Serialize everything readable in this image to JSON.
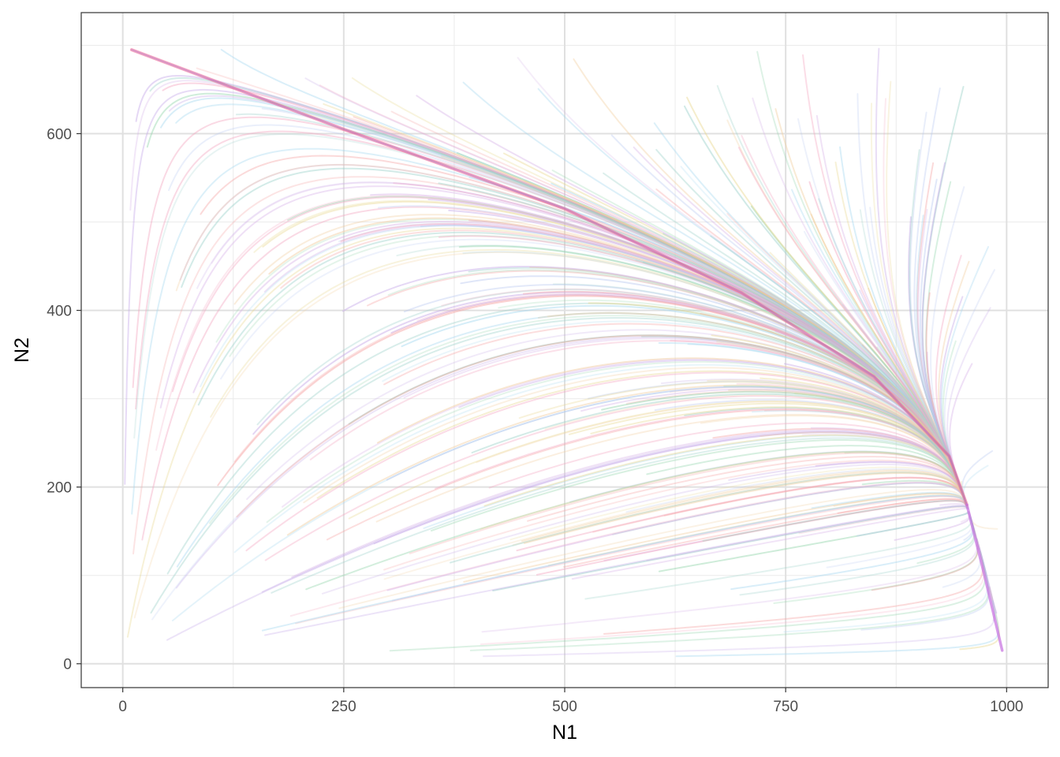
{
  "chart_data": {
    "type": "line",
    "title": "",
    "xlabel": "N1",
    "ylabel": "N2",
    "xlim": [
      -47,
      1047
    ],
    "ylim": [
      -27,
      737
    ],
    "x_ticks": [
      0,
      250,
      500,
      750,
      1000
    ],
    "y_ticks": [
      0,
      200,
      400,
      600
    ],
    "x_tick_labels": [
      "0",
      "250",
      "500",
      "750",
      "1000"
    ],
    "y_tick_labels": [
      "0",
      "200",
      "400",
      "600"
    ],
    "x_minor": [
      125,
      375,
      625,
      875
    ],
    "y_minor": [
      100,
      300,
      500,
      700
    ],
    "grid": true,
    "legend": "none",
    "equilibrium": [
      955,
      180
    ],
    "slow_manifold": {
      "upper": [
        [
          10,
          695
        ],
        [
          250,
          605
        ],
        [
          500,
          515
        ],
        [
          700,
          420
        ],
        [
          850,
          325
        ],
        [
          935,
          235
        ],
        [
          955,
          180
        ]
      ],
      "lower": [
        [
          955,
          180
        ],
        [
          975,
          100
        ],
        [
          995,
          15
        ]
      ]
    },
    "colors": [
      "#8dd3a8",
      "#a6d8f0",
      "#f4a6c1",
      "#f2cfa0",
      "#d7b3e8",
      "#9ad1c9",
      "#f6a5a5",
      "#c5a8e8",
      "#e8d88f",
      "#b7c7f0"
    ],
    "trajectory_count": 320
  }
}
